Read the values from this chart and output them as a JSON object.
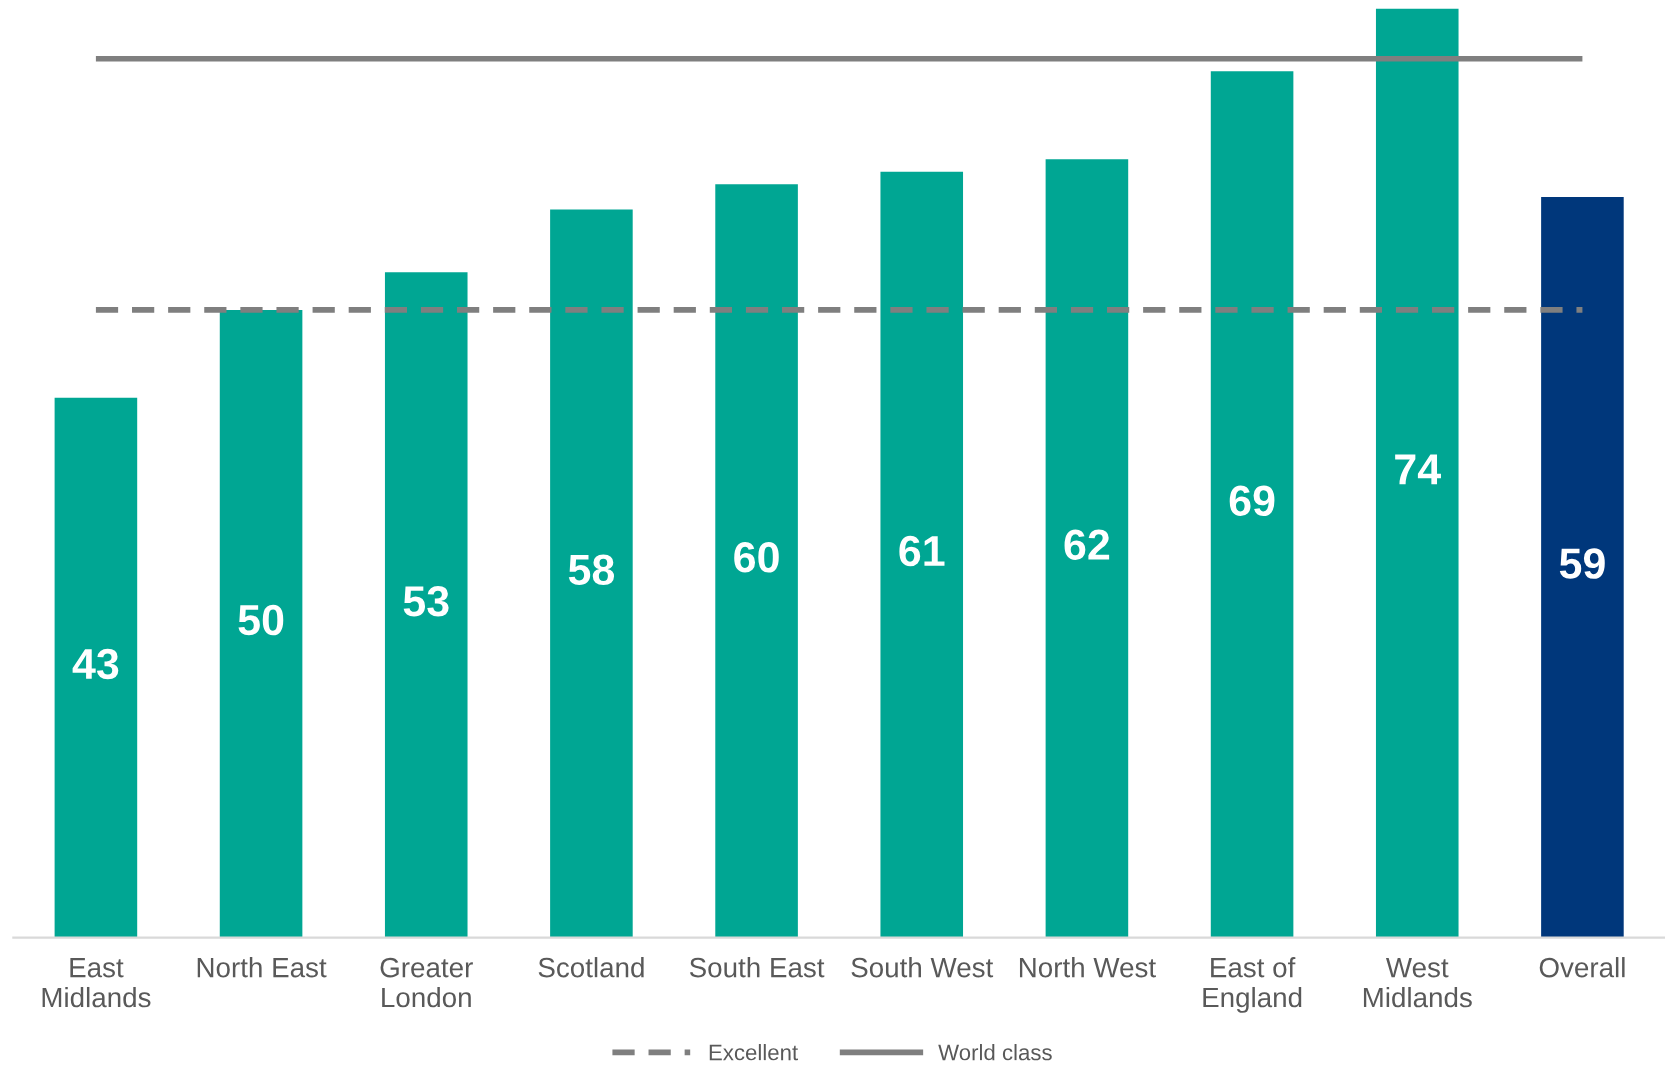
{
  "chart_data": {
    "type": "bar",
    "categories": [
      "East\nMidlands",
      "North East",
      "Greater\nLondon",
      "Scotland",
      "South East",
      "South West",
      "North West",
      "East of\nEngland",
      "West\nMidlands",
      "Overall"
    ],
    "values": [
      43,
      50,
      53,
      58,
      60,
      61,
      62,
      69,
      74,
      59
    ],
    "colors": [
      "#00a693",
      "#00a693",
      "#00a693",
      "#00a693",
      "#00a693",
      "#00a693",
      "#00a693",
      "#00a693",
      "#00a693",
      "#00377b"
    ],
    "data_labels": true,
    "tick_labels": "x",
    "legend": "bottom",
    "ref_lines": [
      {
        "axis": "y",
        "value": 50,
        "label": "Excellent",
        "color": "#7f7f7f",
        "line_style": "dashed"
      },
      {
        "axis": "y",
        "value": 70,
        "label": "World class",
        "color": "#7f7f7f",
        "line_style": "solid"
      }
    ]
  }
}
